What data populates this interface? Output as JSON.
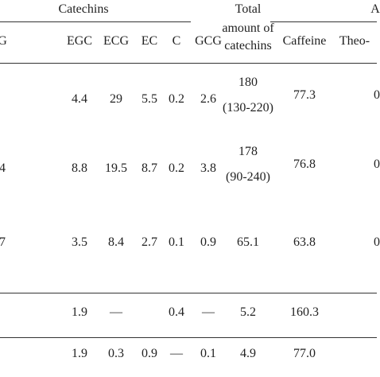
{
  "table": {
    "group_headers": [
      "Catechins",
      "Total",
      "A"
    ],
    "column_headers": [
      "G",
      "EGC",
      "ECG",
      "EC",
      "C",
      "GCG",
      "amount of",
      "catechins",
      "Caffeine",
      "Theo-"
    ],
    "rows": [
      [
        "",
        "4.4",
        "29",
        "5.5",
        "0.2",
        "2.6",
        "180",
        "(130-220)",
        "77.3",
        "0"
      ],
      [
        "4",
        "8.8",
        "19.5",
        "8.7",
        "0.2",
        "3.8",
        "178",
        "(90-240)",
        "76.8",
        "0"
      ],
      [
        "7",
        "3.5",
        "8.4",
        "2.7",
        "0.1",
        "0.9",
        "65.1",
        "",
        "63.8",
        "0"
      ],
      [
        "",
        "1.9",
        "—",
        "",
        "0.4",
        "—",
        "5.2",
        "",
        "160.3",
        ""
      ],
      [
        "",
        "1.9",
        "0.3",
        "0.9",
        "—",
        "0.1",
        "4.9",
        "",
        "77.0",
        ""
      ]
    ]
  }
}
